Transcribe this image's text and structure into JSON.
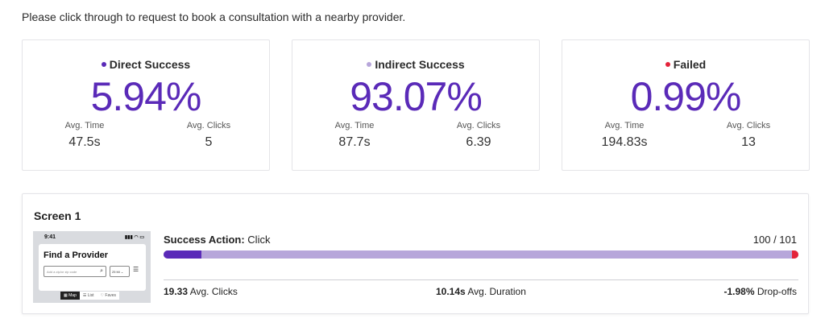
{
  "instruction": "Please click through to request to book a consultation with a nearby provider.",
  "cards": [
    {
      "title": "Direct Success",
      "dot_color": "#5a2ab8",
      "percent": "5.94%",
      "avg_time_label": "Avg. Time",
      "avg_time": "47.5s",
      "avg_clicks_label": "Avg. Clicks",
      "avg_clicks": "5"
    },
    {
      "title": "Indirect Success",
      "dot_color": "#b7a6da",
      "percent": "93.07%",
      "avg_time_label": "Avg. Time",
      "avg_time": "87.7s",
      "avg_clicks_label": "Avg. Clicks",
      "avg_clicks": "6.39"
    },
    {
      "title": "Failed",
      "dot_color": "#e4233a",
      "percent": "0.99%",
      "avg_time_label": "Avg. Time",
      "avg_time": "194.83s",
      "avg_clicks_label": "Avg. Clicks",
      "avg_clicks": "13"
    }
  ],
  "screen": {
    "title": "Screen 1",
    "thumbnail": {
      "time": "9:41",
      "heading": "Find a Provider",
      "search_placeholder": "Add a zip/or zip code",
      "radius": "25 Mi",
      "tabs": [
        "Map",
        "List",
        "Faves"
      ]
    },
    "action_label": "Success Action:",
    "action_value": "Click",
    "count": "100 / 101",
    "bar": {
      "direct": 5.94,
      "indirect": 93.07,
      "failed": 0.99
    },
    "avg_clicks_value": "19.33",
    "avg_clicks_label": "Avg. Clicks",
    "avg_duration_value": "10.14s",
    "avg_duration_label": "Avg. Duration",
    "dropoffs_value": "-1.98%",
    "dropoffs_label": "Drop-offs"
  },
  "colors": {
    "accent": "#5a2ab8",
    "indirect": "#b7a6da",
    "failed": "#e4233a"
  },
  "icons": [
    "search-icon",
    "chevron-down-icon",
    "filter-icon",
    "map-icon",
    "list-icon",
    "heart-icon",
    "signal-icon"
  ]
}
